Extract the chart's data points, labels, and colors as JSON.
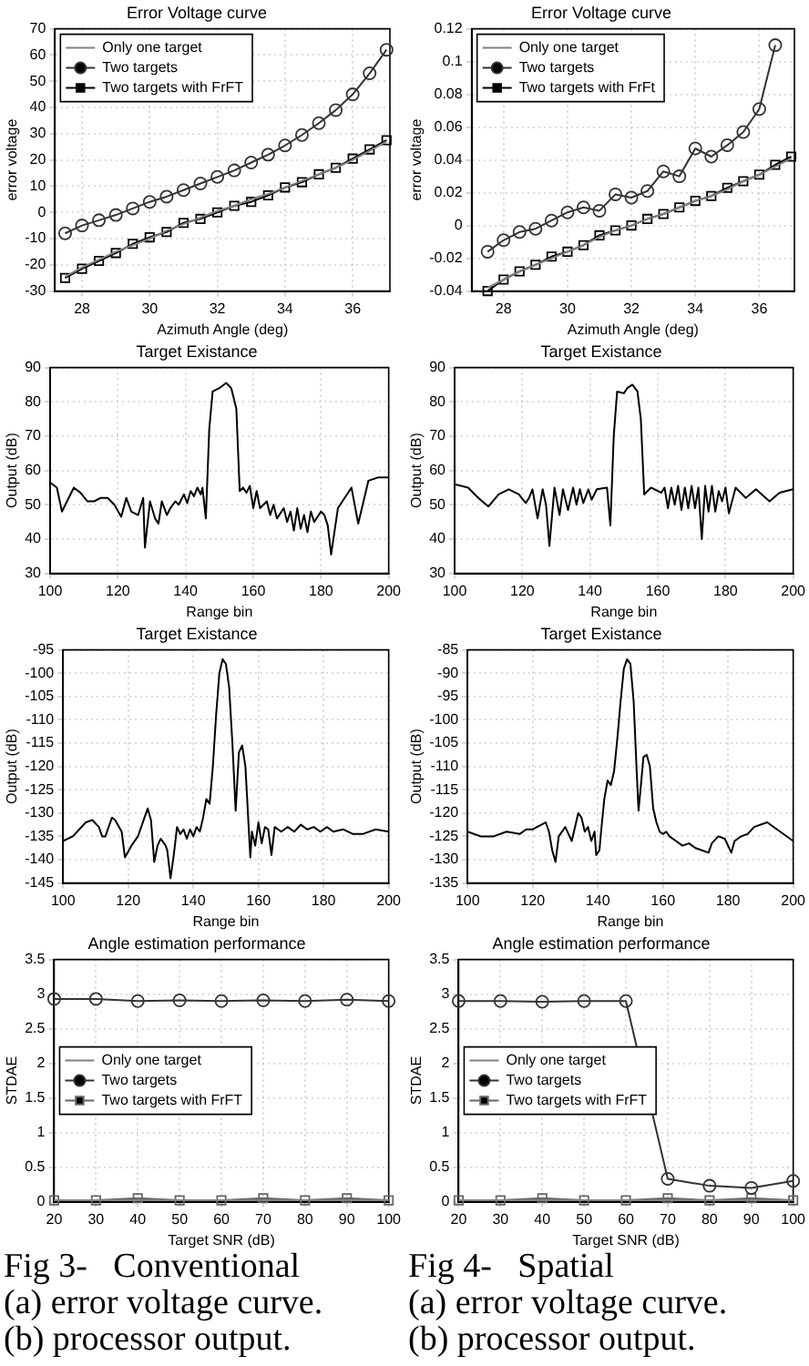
{
  "chart_data": [
    {
      "type": "line",
      "title": "Error Voltage curve",
      "xlabel": "Azimuth Angle (deg)",
      "ylabel": "error voltage",
      "xlim": [
        27.2,
        37.1
      ],
      "xticks": [
        28,
        30,
        32,
        34,
        36
      ],
      "ylim": [
        -30,
        70
      ],
      "yticks": [
        -30,
        -20,
        -10,
        0,
        10,
        20,
        30,
        40,
        50,
        60,
        70
      ],
      "grid": true,
      "legend": "top left",
      "x": [
        27.5,
        28,
        28.5,
        29,
        29.5,
        30,
        30.5,
        31,
        31.5,
        32,
        32.5,
        33,
        33.5,
        34,
        34.5,
        35,
        35.5,
        36,
        36.5,
        37
      ],
      "series": [
        {
          "name": "Only one target",
          "color": "#808080",
          "marker": "none",
          "values": [
            -24.5,
            -21,
            -18,
            -15,
            -12.5,
            -10,
            -7,
            -4.5,
            -2,
            0.5,
            2.5,
            5,
            7,
            9.5,
            12,
            14.5,
            17,
            20,
            23.5,
            27
          ]
        },
        {
          "name": "Two targets",
          "color": "#333333",
          "marker": "circle",
          "values": [
            -8,
            -5,
            -3,
            -1,
            1.5,
            4,
            6,
            8.5,
            11,
            13.5,
            16,
            19,
            22,
            25.5,
            29.5,
            34,
            39,
            45,
            53,
            62
          ]
        },
        {
          "name": "Two targets with FrFT",
          "color": "#000000",
          "marker": "square",
          "values": [
            -25,
            -21.5,
            -18.5,
            -15.5,
            -12,
            -9.5,
            -7.5,
            -4,
            -2.5,
            0,
            2.5,
            4,
            6.5,
            9.5,
            11.5,
            14.5,
            17,
            20.5,
            24,
            27.5
          ]
        }
      ]
    },
    {
      "type": "line",
      "title": "Error Voltage curve",
      "xlabel": "Azimuth Angle (deg)",
      "ylabel": "error voltage",
      "xlim": [
        27,
        37.1
      ],
      "xticks": [
        28,
        30,
        32,
        34,
        36
      ],
      "ylim": [
        -0.04,
        0.12
      ],
      "yticks": [
        -0.04,
        -0.02,
        0,
        0.02,
        0.04,
        0.06,
        0.08,
        0.1,
        0.12
      ],
      "grid": true,
      "legend": "top left",
      "x": [
        27.5,
        28,
        28.5,
        29,
        29.5,
        30,
        30.5,
        31,
        31.5,
        32,
        32.5,
        33,
        33.5,
        34,
        34.5,
        35,
        35.5,
        36,
        36.5,
        37
      ],
      "series": [
        {
          "name": "Only one target",
          "color": "#808080",
          "marker": "none",
          "values": [
            -0.038,
            -0.033,
            -0.028,
            -0.024,
            -0.02,
            -0.016,
            -0.012,
            -0.007,
            -0.003,
            0,
            0.004,
            0.007,
            0.011,
            0.015,
            0.018,
            0.022,
            0.027,
            0.031,
            0.036,
            0.041
          ]
        },
        {
          "name": "Two targets",
          "color": "#333333",
          "marker": "circle",
          "values": [
            -0.016,
            -0.009,
            -0.004,
            -0.002,
            0.003,
            0.008,
            0.011,
            0.009,
            0.019,
            0.017,
            0.021,
            0.033,
            0.03,
            0.047,
            0.042,
            0.049,
            0.057,
            0.071,
            0.11,
            null
          ]
        },
        {
          "name": "Two targets with FrFt",
          "color": "#000000",
          "marker": "square",
          "values": [
            -0.04,
            -0.033,
            -0.028,
            -0.024,
            -0.019,
            -0.016,
            -0.012,
            -0.006,
            -0.003,
            0,
            0.004,
            0.007,
            0.011,
            0.015,
            0.018,
            0.023,
            0.027,
            0.031,
            0.037,
            0.042
          ]
        }
      ]
    },
    {
      "type": "line",
      "title": "Target Existance",
      "xlabel": "Range bin",
      "ylabel": "Output (dB)",
      "xlim": [
        100,
        200
      ],
      "xticks": [
        100,
        120,
        140,
        160,
        180,
        200
      ],
      "ylim": [
        30,
        90
      ],
      "yticks": [
        30,
        40,
        50,
        60,
        70,
        80,
        90
      ],
      "grid": true,
      "marker": "none",
      "color": "#000000",
      "x": [
        100,
        102,
        103.5,
        105,
        107,
        109,
        111,
        113,
        115,
        117,
        119,
        121,
        122.5,
        124,
        126,
        127.5,
        128,
        129.5,
        131,
        132,
        133,
        134.5,
        135.5,
        137,
        138,
        139.5,
        140.5,
        141.5,
        142.5,
        143.5,
        144.5,
        145,
        146,
        147,
        148,
        150,
        152,
        153.5,
        155,
        156,
        157,
        158,
        159,
        160,
        161,
        162,
        164,
        165,
        166,
        167,
        169,
        170,
        171,
        172,
        173,
        174,
        175,
        176,
        177,
        178,
        180,
        181,
        182,
        183,
        185,
        187,
        189,
        191,
        194,
        197,
        200
      ],
      "values": [
        56.5,
        55,
        48,
        51,
        55,
        53.5,
        51,
        51,
        52,
        52,
        50,
        46.5,
        52,
        48,
        47,
        52,
        37.5,
        51,
        46,
        44.5,
        51,
        47,
        49,
        51,
        50,
        53,
        50.5,
        54,
        52.5,
        55,
        53,
        55,
        46,
        72,
        83,
        84,
        85.5,
        84,
        78,
        54,
        55,
        53.5,
        55.5,
        49,
        54,
        49,
        51,
        47,
        50,
        46,
        49,
        45,
        48,
        42.5,
        49,
        43,
        47,
        42,
        48,
        45,
        48,
        47,
        44,
        35.5,
        49,
        52,
        55,
        44.5,
        57,
        58,
        58
      ]
    },
    {
      "type": "line",
      "title": "Target Existance",
      "xlabel": "Range bin",
      "ylabel": "Output (dB)",
      "xlim": [
        100,
        200
      ],
      "xticks": [
        100,
        120,
        140,
        160,
        180,
        200
      ],
      "ylim": [
        30,
        90
      ],
      "yticks": [
        30,
        40,
        50,
        60,
        70,
        80,
        90
      ],
      "grid": true,
      "marker": "none",
      "color": "#000000",
      "x": [
        100,
        104,
        107,
        110,
        113,
        116,
        119,
        121,
        122,
        123,
        124.5,
        126,
        127,
        128,
        129.5,
        131,
        132,
        133.5,
        135,
        136,
        137,
        138,
        139.5,
        140.5,
        142,
        145,
        146,
        147,
        148,
        150,
        151,
        152.5,
        154,
        155,
        156,
        158,
        160,
        161,
        162,
        163,
        164,
        165,
        166,
        167,
        168,
        169,
        170,
        171,
        172,
        173,
        174,
        175,
        176,
        177,
        178,
        179,
        180,
        181,
        183,
        186,
        189,
        193,
        196,
        200
      ],
      "values": [
        56,
        55,
        52,
        49.5,
        53,
        54.5,
        53,
        50.5,
        52,
        54.5,
        46,
        54.5,
        50,
        38,
        55,
        47,
        54.5,
        48.5,
        55,
        50,
        54.5,
        50.5,
        54.5,
        51.5,
        54.5,
        55,
        44,
        70,
        83,
        82.5,
        84,
        85,
        83,
        75,
        53,
        55,
        54,
        53.5,
        55,
        49,
        55,
        50,
        55.5,
        48.5,
        55,
        49,
        55.5,
        49,
        55,
        40,
        55.5,
        48,
        55.5,
        48,
        54,
        51,
        55,
        47.5,
        55,
        52,
        54.5,
        51,
        53.5,
        54.5
      ]
    },
    {
      "type": "line",
      "title": "Target Existance",
      "xlabel": "Range bin",
      "ylabel": "Output (dB)",
      "xlim": [
        100,
        200
      ],
      "xticks": [
        100,
        120,
        140,
        160,
        180,
        200
      ],
      "ylim": [
        -145,
        -95
      ],
      "yticks": [
        -145,
        -140,
        -135,
        -130,
        -125,
        -120,
        -115,
        -110,
        -105,
        -100,
        -95
      ],
      "grid": true,
      "marker": "none",
      "color": "#000000",
      "x": [
        100,
        103,
        107,
        109,
        111,
        112,
        113,
        115,
        116,
        118,
        119,
        121,
        123,
        125,
        126,
        127,
        128,
        129,
        130,
        131.5,
        132,
        133,
        134,
        135,
        136,
        137,
        138,
        139,
        140,
        141,
        142,
        143,
        144,
        145,
        146,
        147,
        148,
        149,
        150,
        151,
        152,
        153,
        154,
        155,
        156,
        157,
        157.5,
        158,
        159,
        160,
        161,
        162,
        163,
        164,
        165,
        167,
        169,
        171,
        173,
        175,
        177,
        179,
        181,
        183,
        186,
        189,
        192,
        196,
        200
      ],
      "values": [
        -136,
        -135,
        -132,
        -131.5,
        -133,
        -135,
        -135,
        -131,
        -131.5,
        -134,
        -139.5,
        -137,
        -135,
        -131,
        -129,
        -131.5,
        -140.5,
        -137,
        -135.5,
        -137,
        -138,
        -144,
        -139,
        -133,
        -134.5,
        -133.5,
        -135.5,
        -133.5,
        -135,
        -133,
        -134,
        -131,
        -127,
        -128,
        -120,
        -109,
        -100,
        -97,
        -98,
        -103,
        -115,
        -129.5,
        -117,
        -115.5,
        -120,
        -133,
        -139.5,
        -134,
        -137,
        -132,
        -136.5,
        -133,
        -133.5,
        -139,
        -133,
        -134,
        -133,
        -134,
        -132.5,
        -133.5,
        -133,
        -134,
        -133,
        -134,
        -133.5,
        -134.5,
        -134.5,
        -133.5,
        -134
      ]
    },
    {
      "type": "line",
      "title": "Target Existance",
      "xlabel": "Range bin",
      "ylabel": "Output (dB)",
      "xlim": [
        100,
        200
      ],
      "xticks": [
        100,
        120,
        140,
        160,
        180,
        200
      ],
      "ylim": [
        -135,
        -85
      ],
      "yticks": [
        -135,
        -130,
        -125,
        -120,
        -115,
        -110,
        -105,
        -100,
        -95,
        -90,
        -85
      ],
      "grid": true,
      "marker": "none",
      "color": "#000000",
      "x": [
        100,
        104,
        108,
        112,
        116,
        118,
        120,
        124,
        125,
        126,
        127,
        128,
        130,
        132,
        134,
        135,
        136,
        137,
        138,
        139,
        139.5,
        140.5,
        141,
        142,
        143,
        144,
        145,
        146,
        147,
        148,
        149,
        150,
        151,
        152,
        152.5,
        153.5,
        154,
        155,
        156,
        157,
        158,
        159,
        160,
        161,
        162,
        164,
        166,
        168,
        170,
        172,
        174,
        175,
        177,
        179,
        181,
        182,
        184,
        186,
        188,
        192,
        196,
        200
      ],
      "values": [
        -124,
        -125,
        -125,
        -124,
        -124.5,
        -123.5,
        -123.5,
        -122,
        -124,
        -128,
        -130.5,
        -125,
        -123,
        -126,
        -120,
        -121,
        -124,
        -123,
        -126,
        -124,
        -129,
        -128,
        -124,
        -117,
        -113,
        -114,
        -111,
        -104,
        -96,
        -89,
        -87,
        -88,
        -96,
        -112,
        -119.5,
        -112,
        -108,
        -107.5,
        -110,
        -119,
        -122,
        -124,
        -124.5,
        -124,
        -125,
        -126,
        -127,
        -126.5,
        -127.5,
        -128,
        -128.5,
        -126.5,
        -125,
        -125.5,
        -128.5,
        -126,
        -125,
        -124.5,
        -123,
        -122,
        -124,
        -126
      ]
    },
    {
      "type": "line",
      "title": "Angle estimation performance",
      "xlabel": "Target SNR (dB)",
      "ylabel": "STDAE",
      "xlim": [
        20,
        100
      ],
      "xticks": [
        20,
        30,
        40,
        50,
        60,
        70,
        80,
        90,
        100
      ],
      "ylim": [
        0,
        3.5
      ],
      "yticks": [
        0,
        0.5,
        1,
        1.5,
        2,
        2.5,
        3,
        3.5
      ],
      "grid": true,
      "legend": "left",
      "x": [
        20,
        30,
        40,
        50,
        60,
        70,
        80,
        90,
        100
      ],
      "series": [
        {
          "name": "Only one target",
          "color": "#808080",
          "marker": "none",
          "values": [
            0.02,
            0.02,
            0.02,
            0.02,
            0.02,
            0.02,
            0.02,
            0.02,
            0.02
          ]
        },
        {
          "name": "Two targets",
          "color": "#333333",
          "marker": "circle",
          "values": [
            2.93,
            2.93,
            2.9,
            2.91,
            2.9,
            2.91,
            2.9,
            2.92,
            2.9
          ]
        },
        {
          "name": "Two targets with FrFT",
          "color": "#666666",
          "marker": "square",
          "values": [
            0.02,
            0.02,
            0.05,
            0.02,
            0.02,
            0.05,
            0.02,
            0.05,
            0.02
          ]
        }
      ],
      "annotations": [
        "Fig 3-   Conventional",
        "(a) error voltage curve.",
        "(b) processor output."
      ]
    },
    {
      "type": "line",
      "title": "Angle estimation performance",
      "xlabel": "Target SNR (dB)",
      "ylabel": "STDAE",
      "xlim": [
        20,
        100
      ],
      "xticks": [
        20,
        30,
        40,
        50,
        60,
        70,
        80,
        90,
        100
      ],
      "ylim": [
        0,
        3.5
      ],
      "yticks": [
        0,
        0.5,
        1,
        1.5,
        2,
        2.5,
        3,
        3.5
      ],
      "grid": true,
      "legend": "left",
      "x": [
        20,
        30,
        40,
        50,
        60,
        70,
        80,
        90,
        100
      ],
      "series": [
        {
          "name": "Only one target",
          "color": "#808080",
          "marker": "none",
          "values": [
            0.02,
            0.02,
            0.02,
            0.02,
            0.02,
            0.02,
            0.02,
            0.02,
            0.02
          ]
        },
        {
          "name": "Two targets",
          "color": "#333333",
          "marker": "circle",
          "values": [
            2.9,
            2.9,
            2.89,
            2.9,
            2.9,
            0.33,
            0.23,
            0.2,
            0.3
          ]
        },
        {
          "name": "Two targets with FrFT",
          "color": "#666666",
          "marker": "square",
          "values": [
            0.02,
            0.02,
            0.05,
            0.02,
            0.02,
            0.05,
            0.02,
            0.05,
            0.02
          ]
        }
      ],
      "annotations": [
        "Fig 4-   Spatial",
        "(a) error voltage curve.",
        "(b) processor output."
      ]
    }
  ]
}
